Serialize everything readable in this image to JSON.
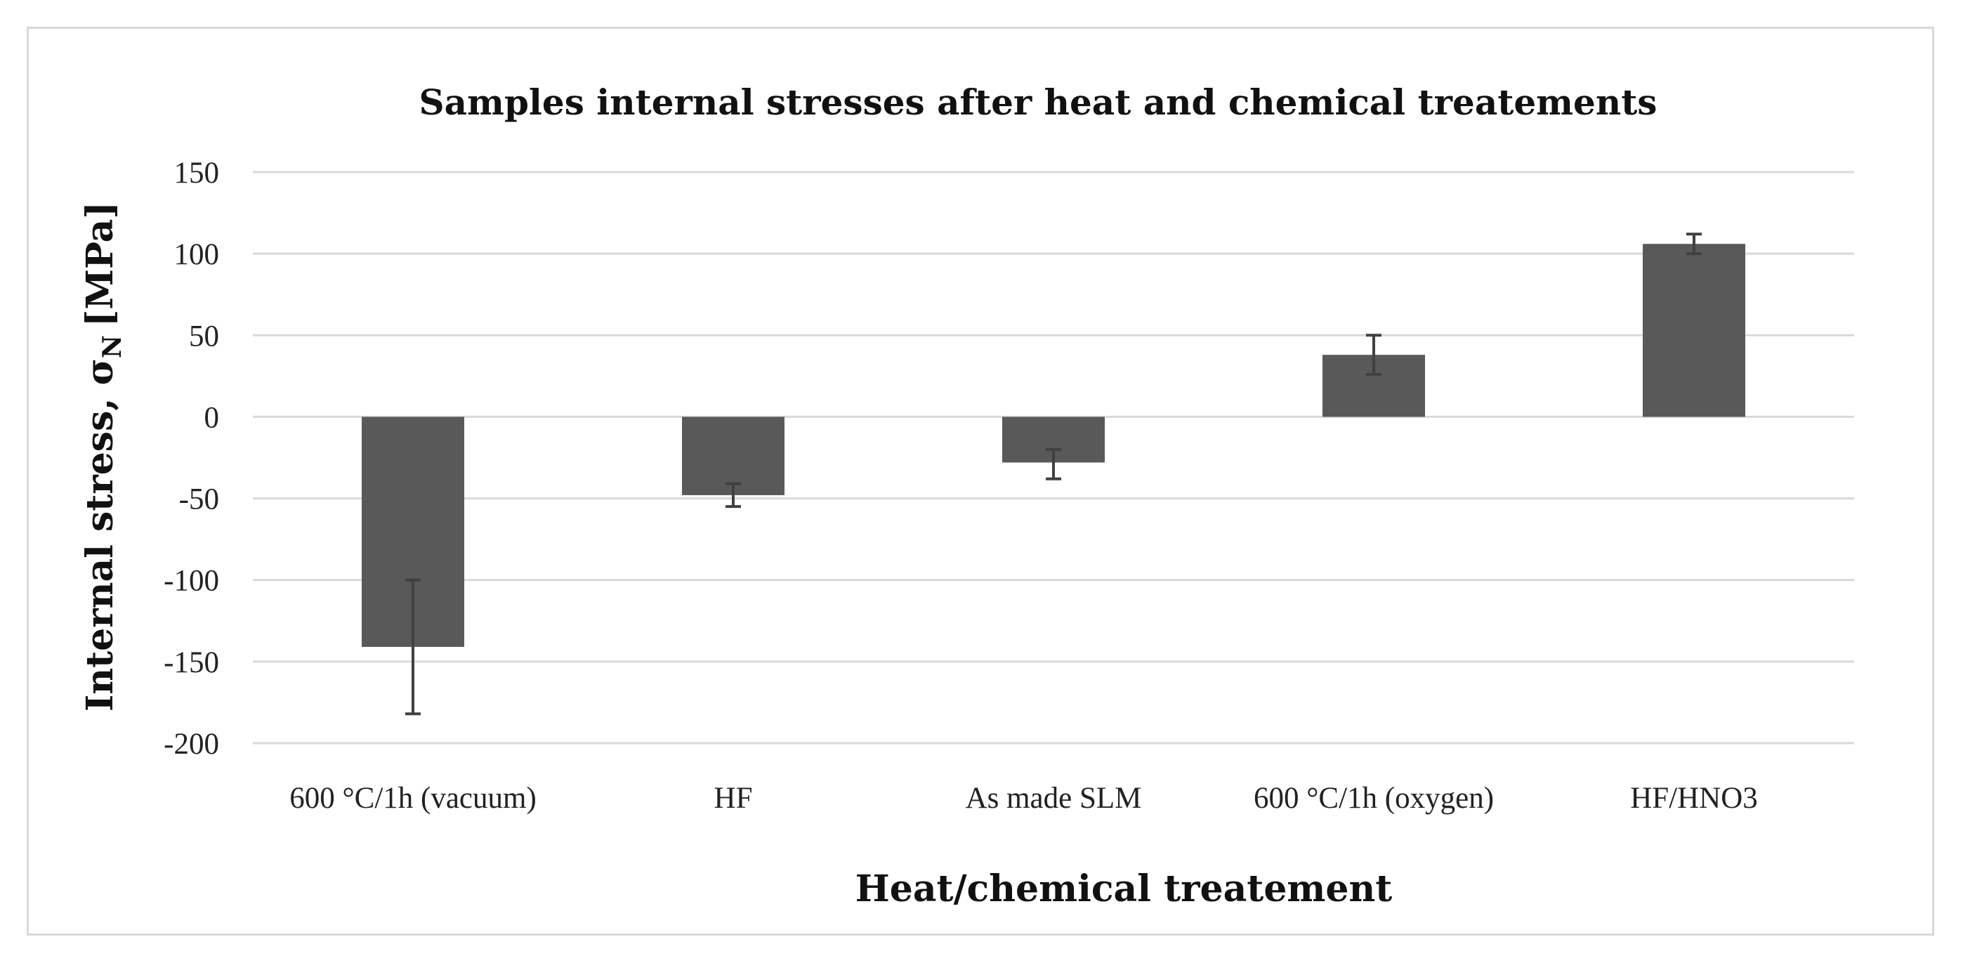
{
  "chart_data": {
    "type": "bar",
    "title": "Samples internal stresses after heat and chemical treatements",
    "xlabel": "Heat/chemical treatement",
    "ylabel": "Internal stress, σ",
    "ylabel_subscript": "N",
    "ylabel_unit": "[MPa]",
    "categories": [
      "600 °C/1h (vacuum)",
      "HF",
      "As made SLM",
      "600 °C/1h (oxygen)",
      "HF/HNO3"
    ],
    "values": [
      -141,
      -48,
      -28,
      38,
      106
    ],
    "error_low": [
      41,
      7,
      10,
      12,
      6
    ],
    "error_high": [
      41,
      7,
      8,
      12,
      6
    ],
    "ylim": [
      -200,
      150
    ],
    "yticks": [
      150,
      100,
      50,
      0,
      -50,
      -100,
      -150,
      -200
    ],
    "grid": true,
    "bar_color": "#595959",
    "grid_color": "#d9d9d9",
    "error_color": "#404040"
  }
}
